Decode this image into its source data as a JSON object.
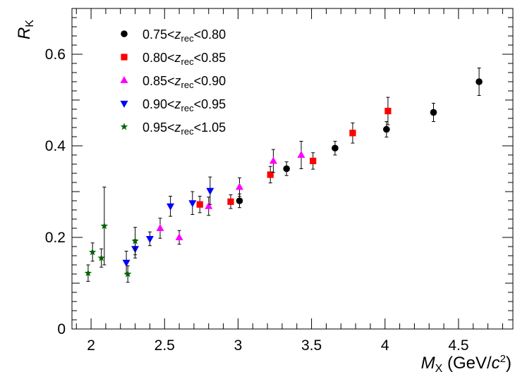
{
  "chart_data": {
    "type": "scatter",
    "title": "",
    "ylabel": {
      "main": "R",
      "sub": "K"
    },
    "xlabel": {
      "main": "M",
      "sub": "X",
      "unit_open": " (GeV/",
      "unit_var": "c",
      "unit_sup": "2",
      "unit_close": ")"
    },
    "xlim": [
      1.87,
      4.87
    ],
    "ylim": [
      0,
      0.7
    ],
    "x_ticks": [
      2,
      2.5,
      3,
      3.5,
      4,
      4.5
    ],
    "x_tick_labels": [
      "2",
      "2.5",
      "3",
      "3.5",
      "4",
      "4.5"
    ],
    "y_ticks": [
      0,
      0.2,
      0.4,
      0.6
    ],
    "y_tick_labels": [
      "0",
      "0.2",
      "0.4",
      "0.6"
    ],
    "legend_position": "top-left",
    "series": [
      {
        "name": "0.75<z_rec<0.80",
        "label_parts": {
          "lo": "0.75<",
          "var": "z",
          "sub": "rec",
          "hi": "<0.80"
        },
        "color": "#000000",
        "marker": "circle",
        "points": [
          {
            "x": 3.01,
            "y": 0.28,
            "err": 0.015
          },
          {
            "x": 3.33,
            "y": 0.35,
            "err": 0.015
          },
          {
            "x": 3.66,
            "y": 0.395,
            "err": 0.015
          },
          {
            "x": 4.01,
            "y": 0.436,
            "err": 0.017
          },
          {
            "x": 4.33,
            "y": 0.473,
            "err": 0.02
          },
          {
            "x": 4.64,
            "y": 0.54,
            "err": 0.03
          }
        ]
      },
      {
        "name": "0.80<z_rec<0.85",
        "label_parts": {
          "lo": "0.80<",
          "var": "z",
          "sub": "rec",
          "hi": "<0.85"
        },
        "color": "#ff0000",
        "marker": "square",
        "points": [
          {
            "x": 2.74,
            "y": 0.272,
            "err": 0.018
          },
          {
            "x": 2.95,
            "y": 0.278,
            "err": 0.015
          },
          {
            "x": 3.22,
            "y": 0.337,
            "err": 0.018
          },
          {
            "x": 3.51,
            "y": 0.367,
            "err": 0.018
          },
          {
            "x": 3.78,
            "y": 0.428,
            "err": 0.022
          },
          {
            "x": 4.02,
            "y": 0.476,
            "err": 0.03
          }
        ]
      },
      {
        "name": "0.85<z_rec<0.90",
        "label_parts": {
          "lo": "0.85<",
          "var": "z",
          "sub": "rec",
          "hi": "<0.90"
        },
        "color": "#ff00ff",
        "marker": "triangle-up",
        "points": [
          {
            "x": 2.47,
            "y": 0.22,
            "err": 0.022
          },
          {
            "x": 2.6,
            "y": 0.2,
            "err": 0.015
          },
          {
            "x": 2.8,
            "y": 0.268,
            "err": 0.02
          },
          {
            "x": 3.01,
            "y": 0.31,
            "err": 0.02
          },
          {
            "x": 3.24,
            "y": 0.367,
            "err": 0.025
          },
          {
            "x": 3.43,
            "y": 0.38,
            "err": 0.03
          }
        ]
      },
      {
        "name": "0.90<z_rec<0.95",
        "label_parts": {
          "lo": "0.90<",
          "var": "z",
          "sub": "rec",
          "hi": "<0.95"
        },
        "color": "#0000ff",
        "marker": "triangle-down",
        "points": [
          {
            "x": 2.24,
            "y": 0.145,
            "err": 0.025
          },
          {
            "x": 2.3,
            "y": 0.175,
            "err": 0.02
          },
          {
            "x": 2.4,
            "y": 0.197,
            "err": 0.015
          },
          {
            "x": 2.54,
            "y": 0.268,
            "err": 0.022
          },
          {
            "x": 2.69,
            "y": 0.275,
            "err": 0.025
          },
          {
            "x": 2.81,
            "y": 0.302,
            "err": 0.03
          }
        ]
      },
      {
        "name": "0.95<z_rec<1.05",
        "label_parts": {
          "lo": "0.95<",
          "var": "z",
          "sub": "rec",
          "hi": "<1.05"
        },
        "color": "#006400",
        "marker": "star",
        "points": [
          {
            "x": 1.98,
            "y": 0.122,
            "err": 0.018
          },
          {
            "x": 2.01,
            "y": 0.168,
            "err": 0.02
          },
          {
            "x": 2.07,
            "y": 0.155,
            "err": 0.02
          },
          {
            "x": 2.09,
            "y": 0.225,
            "err": 0.085
          },
          {
            "x": 2.25,
            "y": 0.12,
            "err": 0.018
          },
          {
            "x": 2.3,
            "y": 0.192,
            "err": 0.03
          }
        ]
      }
    ]
  }
}
